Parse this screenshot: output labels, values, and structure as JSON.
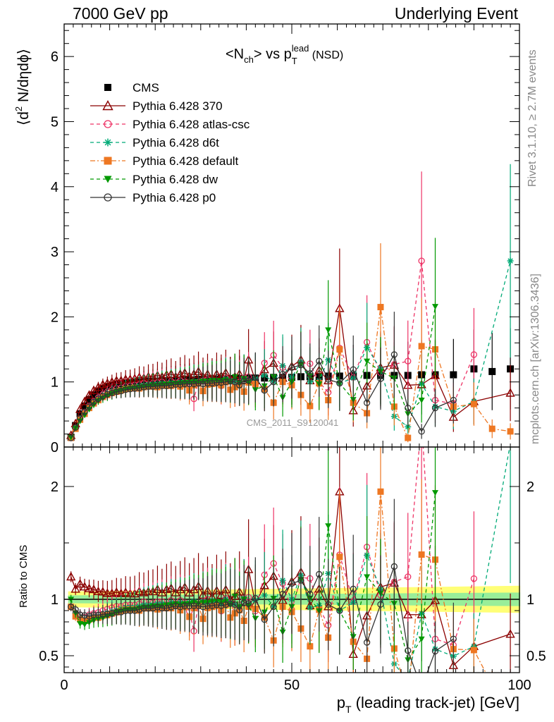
{
  "header": {
    "left": "7000 GeV pp",
    "right": "Underlying Event"
  },
  "side_labels": {
    "rivet": "Rivet 3.1.10, ≥ 2.7M events",
    "mcplots": "mcplots.cern.ch [arXiv:1306.3436]"
  },
  "chart_data": {
    "type": "scatter",
    "title_parts": [
      "<N",
      "ch",
      "> vs p",
      "T",
      "lead",
      " (NSD)"
    ],
    "watermark": "CMS_2011_S9120041",
    "xlabel_parts": [
      "p",
      "T",
      " (leading track-jet) [GeV]"
    ],
    "ylabel_parts": [
      "⟨d",
      "2",
      " N/dηdϕ⟩"
    ],
    "ratio_ylabel": "Ratio to CMS",
    "xlim": [
      0,
      100
    ],
    "ylim_main": [
      0,
      6.5
    ],
    "ylim_ratio": [
      0.35,
      2.35
    ],
    "x_ticks": [
      0,
      50,
      100
    ],
    "y_ticks_main": [
      0,
      1,
      2,
      3,
      4,
      5,
      6
    ],
    "y_ticks_ratio": [
      0.5,
      1,
      2
    ],
    "legend_placement": "top-left",
    "x": [
      1.5,
      2.5,
      3.5,
      4.5,
      5.5,
      6.5,
      7.5,
      8.5,
      9.5,
      10.5,
      11.5,
      12.5,
      13.5,
      14.5,
      15.5,
      16.5,
      17.5,
      18.5,
      19.5,
      20.5,
      21.5,
      22.5,
      23.5,
      24.5,
      25.5,
      26.5,
      27.5,
      28.5,
      29.5,
      30.5,
      31.5,
      32.5,
      33.5,
      34.5,
      35.5,
      36.5,
      37.5,
      38.5,
      39.5,
      40.5,
      42,
      44,
      46,
      48,
      50,
      52,
      54,
      56,
      58,
      60.5,
      63.5,
      66.5,
      69.5,
      72.5,
      75.5,
      78.5,
      81.5,
      85.5,
      90,
      94,
      98
    ],
    "series": [
      {
        "name": "CMS",
        "color": "#000000",
        "marker": "square-filled",
        "line": "none",
        "values": [
          0.15,
          0.33,
          0.51,
          0.63,
          0.73,
          0.8,
          0.86,
          0.9,
          0.93,
          0.95,
          0.96,
          0.97,
          0.98,
          0.99,
          1.0,
          1.0,
          1.0,
          1.01,
          1.01,
          1.01,
          1.02,
          1.02,
          1.02,
          1.02,
          1.03,
          1.03,
          1.03,
          1.03,
          1.04,
          1.04,
          1.04,
          1.04,
          1.04,
          1.05,
          1.05,
          1.05,
          1.05,
          1.05,
          1.05,
          1.06,
          1.06,
          1.06,
          1.07,
          1.07,
          1.07,
          1.08,
          1.08,
          1.08,
          1.09,
          1.09,
          1.09,
          1.1,
          1.1,
          1.1,
          1.1,
          1.11,
          1.11,
          1.11,
          1.2,
          1.16,
          1.2
        ]
      },
      {
        "name": "Pythia 6.428 370",
        "color": "#8b0000",
        "marker": "triangle-open",
        "line": "solid",
        "values": [
          0.18,
          0.36,
          0.58,
          0.7,
          0.8,
          0.87,
          0.92,
          0.96,
          0.98,
          1.0,
          1.02,
          1.02,
          1.04,
          1.04,
          1.05,
          1.07,
          1.06,
          1.08,
          1.08,
          1.1,
          1.08,
          1.11,
          1.12,
          1.08,
          1.12,
          1.14,
          1.09,
          1.12,
          1.16,
          1.08,
          1.12,
          1.06,
          1.12,
          1.09,
          1.14,
          1.05,
          1.08,
          1.12,
          1.02,
          1.34,
          1.02,
          1.19,
          1.29,
          1.06,
          1.24,
          1.34,
          1.02,
          1.18,
          1.02,
          2.13,
          0.56,
          0.94,
          1.22,
          1.26,
          0.95,
          0.96,
          1.1,
          0.46,
          0.7,
          null,
          0.83
        ]
      },
      {
        "name": "Pythia 6.428 atlas-csc",
        "color": "#ee3366",
        "marker": "circle-open",
        "line": "dashed",
        "values": [
          0.14,
          0.29,
          0.44,
          0.53,
          0.63,
          0.7,
          0.76,
          0.81,
          0.85,
          0.88,
          0.9,
          0.91,
          0.93,
          0.94,
          0.95,
          0.96,
          0.98,
          0.96,
          0.98,
          0.99,
          1.0,
          0.97,
          1.01,
          0.98,
          1.02,
          1.0,
          0.92,
          0.74,
          1.0,
          1.02,
          1.04,
          1.0,
          1.01,
          0.94,
          1.06,
          1.02,
          0.92,
          1.0,
          1.06,
          1.08,
          0.95,
          1.29,
          1.41,
          1.22,
          0.97,
          1.29,
          1.28,
          1.0,
          0.84,
          1.52,
          1.07,
          1.61,
          1.14,
          1.27,
          1.32,
          2.86,
          0.72,
          0.66,
          1.42,
          null,
          null
        ]
      },
      {
        "name": "Pythia 6.428 d6t",
        "color": "#00aa77",
        "marker": "star",
        "line": "dashed",
        "values": [
          0.14,
          0.29,
          0.43,
          0.52,
          0.61,
          0.68,
          0.73,
          0.78,
          0.82,
          0.85,
          0.87,
          0.89,
          0.91,
          0.92,
          0.93,
          0.94,
          0.95,
          0.96,
          0.96,
          0.97,
          0.98,
          0.97,
          0.99,
          0.98,
          1.0,
          0.99,
          1.0,
          1.01,
          1.0,
          1.02,
          1.0,
          1.03,
          1.01,
          1.0,
          1.05,
          1.02,
          1.0,
          0.97,
          1.06,
          1.01,
          1.05,
          1.1,
          1.0,
          1.25,
          1.07,
          1.31,
          1.0,
          1.02,
          1.34,
          0.98,
          1.06,
          1.53,
          1.2,
          0.47,
          0.31,
          0.97,
          0.62,
          0.55,
          0.7,
          null,
          2.86
        ]
      },
      {
        "name": "Pythia 6.428 default",
        "color": "#ee7722",
        "marker": "square-filled",
        "line": "dashdot",
        "values": [
          0.14,
          0.28,
          0.42,
          0.51,
          0.6,
          0.67,
          0.72,
          0.77,
          0.8,
          0.83,
          0.85,
          0.87,
          0.89,
          0.9,
          0.91,
          0.9,
          0.92,
          0.93,
          0.93,
          0.92,
          0.95,
          0.94,
          0.94,
          0.96,
          0.93,
          0.96,
          0.87,
          0.95,
          0.98,
          0.86,
          0.96,
          0.97,
          0.98,
          0.95,
          1.0,
          0.88,
          0.92,
          0.95,
          0.85,
          0.99,
          0.97,
          0.89,
          0.68,
          1.0,
          0.95,
          0.8,
          0.63,
          0.98,
          0.72,
          1.5,
          0.68,
          0.52,
          2.15,
          0.62,
          0.14,
          1.55,
          1.5,
          0.62,
          0.66,
          0.28,
          0.24
        ]
      },
      {
        "name": "Pythia 6.428 dw",
        "color": "#009900",
        "marker": "triangle-down-filled",
        "line": "dashed",
        "values": [
          0.15,
          0.29,
          0.4,
          0.49,
          0.58,
          0.65,
          0.71,
          0.75,
          0.79,
          0.82,
          0.85,
          0.87,
          0.89,
          0.9,
          0.91,
          0.92,
          0.93,
          0.94,
          0.95,
          0.95,
          0.96,
          0.97,
          0.97,
          0.98,
          0.98,
          0.99,
          0.99,
          1.0,
          1.0,
          1.01,
          1.01,
          1.02,
          1.02,
          1.02,
          1.03,
          1.0,
          1.08,
          0.98,
          1.05,
          1.0,
          0.88,
          0.94,
          1.08,
          0.76,
          1.0,
          1.27,
          1.09,
          0.97,
          1.8,
          0.98,
          0.73,
          1.32,
          1.16,
          1.06,
          0.51,
          0.72,
          2.16,
          null,
          null,
          null,
          null
        ]
      },
      {
        "name": "Pythia 6.428 p0",
        "color": "#333333",
        "marker": "circle-open",
        "line": "solid",
        "values": [
          0.14,
          0.3,
          0.44,
          0.54,
          0.62,
          0.69,
          0.74,
          0.78,
          0.81,
          0.83,
          0.85,
          0.86,
          0.88,
          0.89,
          0.9,
          0.91,
          0.92,
          0.93,
          0.93,
          0.94,
          0.94,
          0.94,
          0.95,
          0.96,
          0.96,
          0.97,
          0.97,
          0.97,
          0.98,
          0.97,
          0.98,
          0.98,
          0.99,
          0.99,
          1.0,
          1.01,
          1.0,
          0.95,
          1.02,
          1.02,
          1.07,
          0.87,
          1.0,
          1.12,
          1.22,
          1.26,
          1.13,
          1.32,
          1.04,
          0.98,
          1.19,
          0.68,
          1.05,
          1.42,
          0.6,
          0.24,
          0.6,
          0.72,
          null,
          null,
          null
        ]
      }
    ]
  }
}
